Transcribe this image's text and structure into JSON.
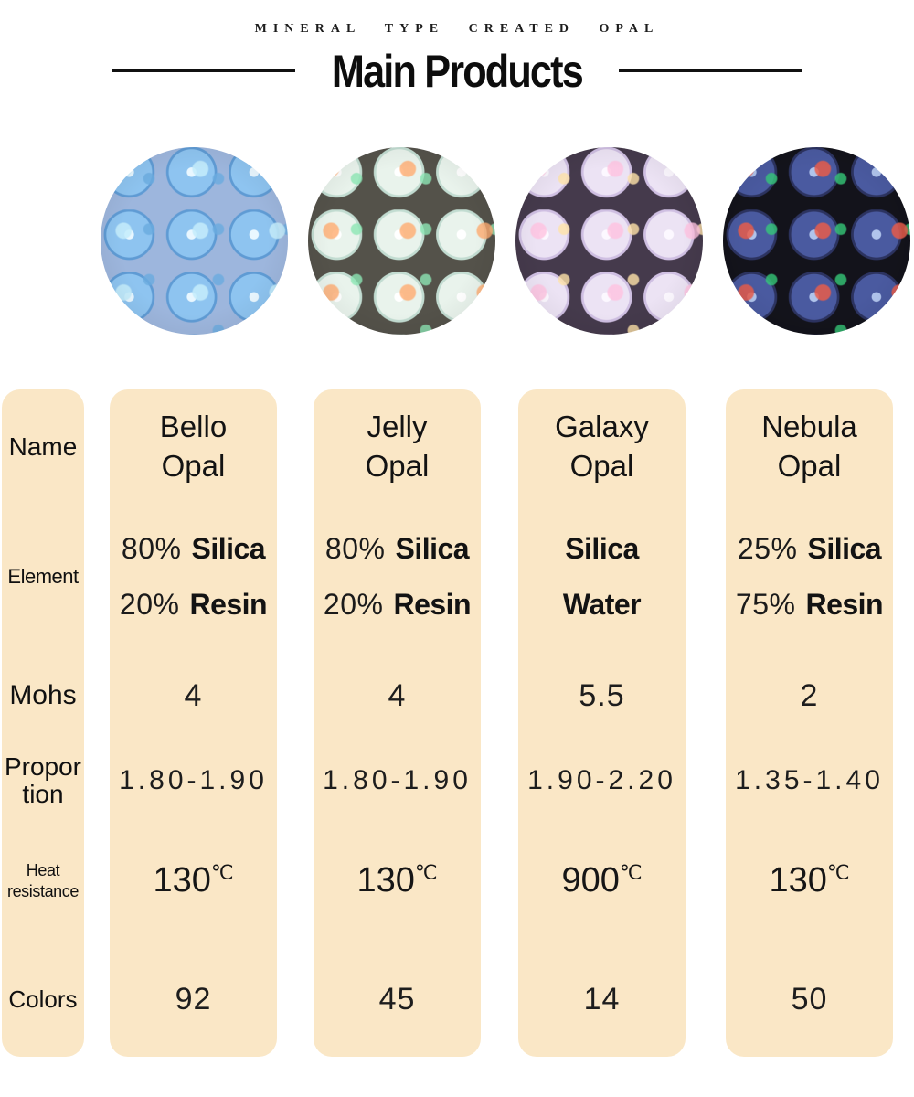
{
  "palette": {
    "page_bg": "#ffffff",
    "cell_bg": "#fae7c6",
    "text": "#151515",
    "rule_color": "#111111"
  },
  "header": {
    "tagline": "MINERAL TYPE CREATED OPAL",
    "title": "Main Products"
  },
  "row_labels": {
    "name": "Name",
    "element": "Element",
    "mohs": "Mohs",
    "proportion": "Proportion",
    "heat_line1": "Heat",
    "heat_line2": "resistance",
    "colors": "Colors"
  },
  "products": [
    {
      "name": "Bello Opal",
      "photo": "light-blue-opal-beads",
      "photo_colors": {
        "gap": "#9db6dd",
        "bead": "#8ec4f0",
        "highlight": "#e9f7ff",
        "shade": "#5f9bd4",
        "fleck1": "#c4ecfbdd",
        "fleck2": "#6aabdfcc"
      },
      "element": [
        {
          "pct": "80%",
          "name": "Silica"
        },
        {
          "pct": "20%",
          "name": "Resin"
        }
      ],
      "mohs": "4",
      "proportion": "1.80-1.90",
      "heat_c": "130",
      "heat_unit": "℃",
      "colors_count": "92"
    },
    {
      "name": "Jelly Opal",
      "photo": "white-fire-opal-beads",
      "photo_colors": {
        "gap": "#54524a",
        "bead": "#e9f3ec",
        "highlight": "#ffffff",
        "shade": "#c2dcd1",
        "fleck1": "#ffab70cc",
        "fleck2": "#8ce6b4cc"
      },
      "element": [
        {
          "pct": "80%",
          "name": "Silica"
        },
        {
          "pct": "20%",
          "name": "Resin"
        }
      ],
      "mohs": "4",
      "proportion": "1.80-1.90",
      "heat_c": "130",
      "heat_unit": "℃",
      "colors_count": "45"
    },
    {
      "name": "Galaxy Opal",
      "photo": "pastel-lavender-opal-beads",
      "photo_colors": {
        "gap": "#453a4c",
        "bead": "#ece3f4",
        "highlight": "#fcf8ff",
        "shade": "#cfbfe2",
        "fleck1": "#ffc2e0cc",
        "fleck2": "#ffe3a8cc"
      },
      "element": [
        {
          "pct": "",
          "name": "Silica"
        },
        {
          "pct": "",
          "name": "Water"
        }
      ],
      "mohs": "5.5",
      "proportion": "1.90-2.20",
      "heat_c": "900",
      "heat_unit": "℃",
      "colors_count": "14"
    },
    {
      "name": "Nebula Opal",
      "photo": "dark-blue-fire-opal-beads",
      "photo_colors": {
        "gap": "#13131b",
        "bead": "#4a5aa0",
        "highlight": "#b0c4ec",
        "shade": "#2c3360",
        "fleck1": "#e85c4ad9",
        "fleck2": "#35c878cc"
      },
      "element": [
        {
          "pct": "25%",
          "name": "Silica"
        },
        {
          "pct": "75%",
          "name": "Resin"
        }
      ],
      "mohs": "2",
      "proportion": "1.35-1.40",
      "heat_c": "130",
      "heat_unit": "℃",
      "colors_count": "50"
    }
  ]
}
